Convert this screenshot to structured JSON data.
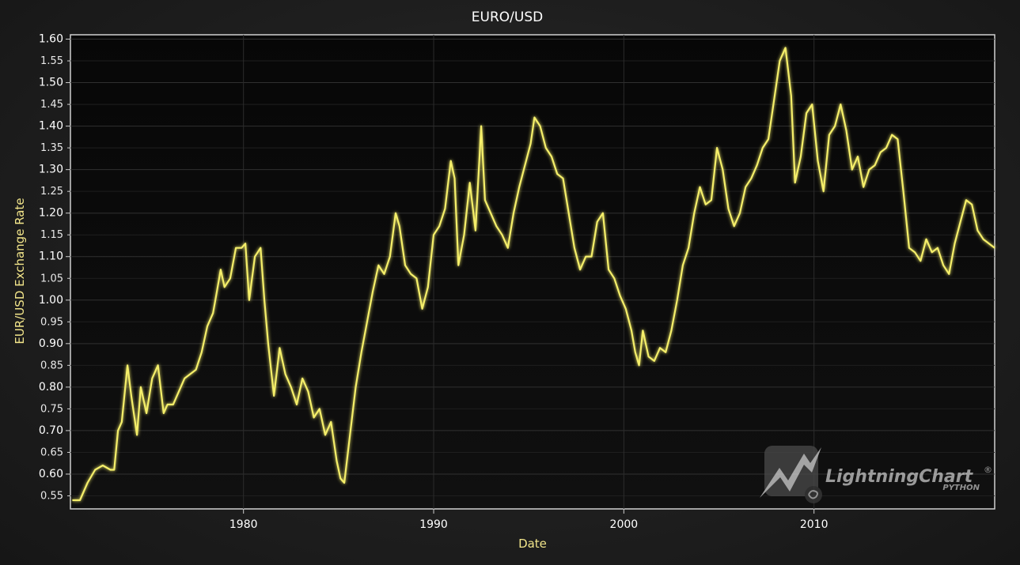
{
  "chart_data": {
    "type": "line",
    "title": "EURO/USD",
    "xlabel": "Date",
    "ylabel": "EUR/USD Exchange Rate",
    "xlim": [
      1970.9,
      2019.5
    ],
    "ylim": [
      0.52,
      1.61
    ],
    "grid": true,
    "x_ticks": [
      "1980",
      "1990",
      "2000",
      "2010"
    ],
    "x_tick_values": [
      1980,
      1990,
      2000,
      2010
    ],
    "y_ticks": [
      "0.55",
      "0.60",
      "0.65",
      "0.70",
      "0.75",
      "0.80",
      "0.85",
      "0.90",
      "0.95",
      "1.00",
      "1.05",
      "1.10",
      "1.15",
      "1.20",
      "1.25",
      "1.30",
      "1.35",
      "1.40",
      "1.45",
      "1.50",
      "1.55",
      "1.60"
    ],
    "y_major_ticks": [
      "0.60",
      "0.70",
      "0.80",
      "0.90",
      "1.00",
      "1.10",
      "1.20",
      "1.30",
      "1.40",
      "1.50",
      "1.60"
    ],
    "line_color": "#f5ef6a",
    "series": [
      {
        "x": [
          1971.0,
          1971.4,
          1971.8,
          1972.2,
          1972.6,
          1973.0,
          1973.2,
          1973.4,
          1973.6,
          1973.9,
          1974.1,
          1974.4,
          1974.6,
          1974.9,
          1975.2,
          1975.5,
          1975.8,
          1976.0,
          1976.3,
          1976.6,
          1976.9,
          1977.2,
          1977.5,
          1977.8,
          1978.1,
          1978.4,
          1978.6,
          1978.8,
          1979.0,
          1979.3,
          1979.6,
          1979.9,
          1980.1,
          1980.3,
          1980.6,
          1980.9,
          1981.1,
          1981.3,
          1981.6,
          1981.9,
          1982.2,
          1982.5,
          1982.8,
          1983.1,
          1983.4,
          1983.7,
          1984.0,
          1984.3,
          1984.6,
          1984.9,
          1985.1,
          1985.3,
          1985.6,
          1985.9,
          1986.2,
          1986.5,
          1986.8,
          1987.1,
          1987.4,
          1987.7,
          1988.0,
          1988.2,
          1988.5,
          1988.8,
          1989.1,
          1989.4,
          1989.7,
          1990.0,
          1990.3,
          1990.6,
          1990.9,
          1991.1,
          1991.3,
          1991.6,
          1991.9,
          1992.2,
          1992.5,
          1992.7,
          1993.0,
          1993.3,
          1993.6,
          1993.9,
          1994.2,
          1994.5,
          1994.8,
          1995.1,
          1995.3,
          1995.6,
          1995.9,
          1996.2,
          1996.5,
          1996.8,
          1997.1,
          1997.4,
          1997.7,
          1998.0,
          1998.3,
          1998.6,
          1998.9,
          1999.2,
          1999.5,
          1999.8,
          2000.1,
          2000.4,
          2000.6,
          2000.8,
          2001.0,
          2001.3,
          2001.6,
          2001.9,
          2002.2,
          2002.5,
          2002.8,
          2003.1,
          2003.4,
          2003.7,
          2004.0,
          2004.3,
          2004.6,
          2004.9,
          2005.2,
          2005.5,
          2005.8,
          2006.1,
          2006.4,
          2006.7,
          2007.0,
          2007.3,
          2007.6,
          2007.9,
          2008.2,
          2008.5,
          2008.8,
          2009.0,
          2009.3,
          2009.6,
          2009.9,
          2010.2,
          2010.5,
          2010.8,
          2011.1,
          2011.4,
          2011.7,
          2012.0,
          2012.3,
          2012.6,
          2012.9,
          2013.2,
          2013.5,
          2013.8,
          2014.1,
          2014.4,
          2014.7,
          2015.0,
          2015.3,
          2015.6,
          2015.9,
          2016.2,
          2016.5,
          2016.8,
          2017.1,
          2017.4,
          2017.7,
          2018.0,
          2018.3,
          2018.6,
          2018.9,
          2019.2,
          2019.5
        ],
        "y": [
          0.54,
          0.54,
          0.58,
          0.61,
          0.62,
          0.61,
          0.61,
          0.7,
          0.72,
          0.85,
          0.78,
          0.69,
          0.8,
          0.74,
          0.82,
          0.85,
          0.74,
          0.76,
          0.76,
          0.79,
          0.82,
          0.83,
          0.84,
          0.88,
          0.94,
          0.97,
          1.02,
          1.07,
          1.03,
          1.05,
          1.12,
          1.12,
          1.13,
          1.0,
          1.1,
          1.12,
          1.0,
          0.9,
          0.78,
          0.89,
          0.83,
          0.8,
          0.76,
          0.82,
          0.79,
          0.73,
          0.75,
          0.69,
          0.72,
          0.63,
          0.59,
          0.58,
          0.69,
          0.8,
          0.88,
          0.95,
          1.02,
          1.08,
          1.06,
          1.1,
          1.2,
          1.17,
          1.08,
          1.06,
          1.05,
          0.98,
          1.03,
          1.15,
          1.17,
          1.21,
          1.32,
          1.28,
          1.08,
          1.15,
          1.27,
          1.16,
          1.4,
          1.23,
          1.2,
          1.17,
          1.15,
          1.12,
          1.2,
          1.26,
          1.31,
          1.36,
          1.42,
          1.4,
          1.35,
          1.33,
          1.29,
          1.28,
          1.2,
          1.12,
          1.07,
          1.1,
          1.1,
          1.18,
          1.2,
          1.07,
          1.05,
          1.01,
          0.98,
          0.93,
          0.88,
          0.85,
          0.93,
          0.87,
          0.86,
          0.89,
          0.88,
          0.93,
          1.0,
          1.08,
          1.12,
          1.2,
          1.26,
          1.22,
          1.23,
          1.35,
          1.3,
          1.21,
          1.17,
          1.2,
          1.26,
          1.28,
          1.31,
          1.35,
          1.37,
          1.46,
          1.55,
          1.58,
          1.47,
          1.27,
          1.33,
          1.43,
          1.45,
          1.32,
          1.25,
          1.38,
          1.4,
          1.45,
          1.39,
          1.3,
          1.33,
          1.26,
          1.3,
          1.31,
          1.34,
          1.35,
          1.38,
          1.37,
          1.25,
          1.12,
          1.11,
          1.09,
          1.14,
          1.11,
          1.12,
          1.08,
          1.06,
          1.13,
          1.18,
          1.23,
          1.22,
          1.16,
          1.14,
          1.13,
          1.12
        ]
      }
    ],
    "watermark": {
      "brand": "LightningChart",
      "sub": "PYTHON"
    }
  }
}
